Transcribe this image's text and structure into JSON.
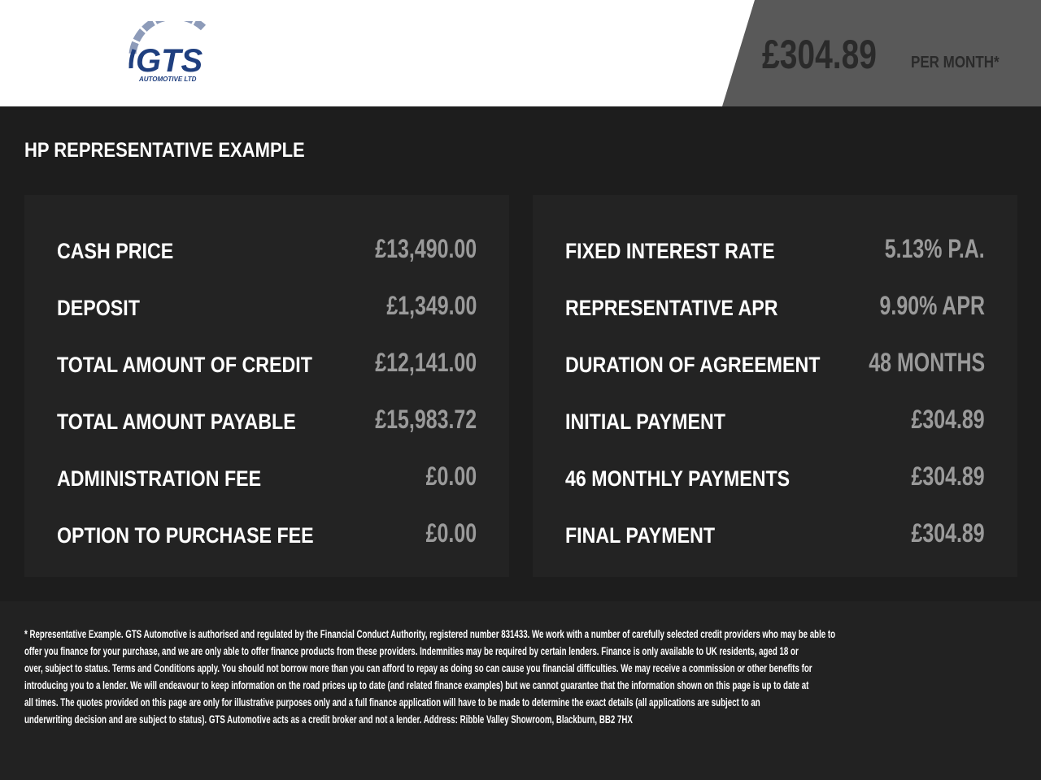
{
  "header": {
    "logo_text": "GTS",
    "logo_sub": "AUTOMOTIVE LTD",
    "price": "£304.89",
    "per_month": "PER MONTH*"
  },
  "title": "HP REPRESENTATIVE EXAMPLE",
  "left": [
    {
      "label": "CASH PRICE",
      "value": "£13,490.00"
    },
    {
      "label": "DEPOSIT",
      "value": "£1,349.00"
    },
    {
      "label": "TOTAL AMOUNT OF CREDIT",
      "value": "£12,141.00"
    },
    {
      "label": "TOTAL AMOUNT PAYABLE",
      "value": "£15,983.72"
    },
    {
      "label": "ADMINISTRATION FEE",
      "value": "£0.00"
    },
    {
      "label": "OPTION TO PURCHASE FEE",
      "value": "£0.00"
    }
  ],
  "right": [
    {
      "label": "FIXED INTEREST RATE",
      "value": "5.13% P.A."
    },
    {
      "label": "REPRESENTATIVE APR",
      "value": "9.90% APR"
    },
    {
      "label": "DURATION OF AGREEMENT",
      "value": "48 MONTHS"
    },
    {
      "label": "INITIAL PAYMENT",
      "value": "£304.89"
    },
    {
      "label": "46 MONTHLY PAYMENTS",
      "value": "£304.89"
    },
    {
      "label": "FINAL PAYMENT",
      "value": "£304.89"
    }
  ],
  "disclaimer": [
    "* Representative Example. GTS Automotive is authorised and regulated by the Financial Conduct Authority, registered number 831433. We work with a number of carefully selected credit providers who may be able to",
    "offer you finance for your purchase, and we are only able to offer finance products from these providers. Indemnities may be required by certain lenders. Finance is only available to UK residents, aged 18 or",
    "over, subject to status. Terms and Conditions apply. You should not borrow more than you can afford to repay as doing so can cause you financial difficulties. We may receive a commission or other benefits for",
    "introducing you to a lender. We will endeavour to keep information on the road prices up to date (and related finance examples) but we cannot guarantee that the information shown on this page is up to date at",
    "all times. The quotes provided on this page are only for illustrative purposes only and a full finance application will have to be made to determine the exact details (all applications are subject to an",
    "underwriting decision and are subject to status). GTS Automotive acts as a credit broker and not a lender. Address: Ribble Valley Showroom, Blackburn, BB2 7HX"
  ]
}
